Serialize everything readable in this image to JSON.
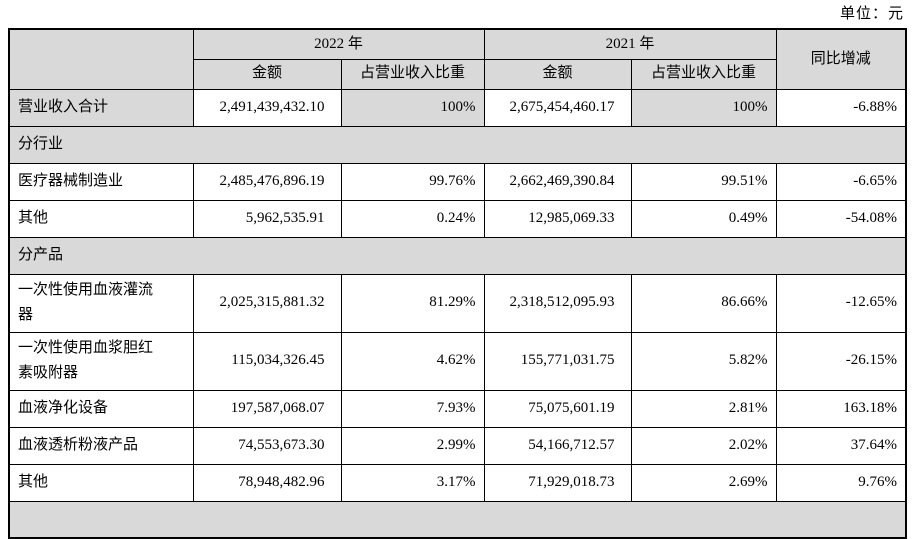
{
  "meta": {
    "unit_label": "单位：元"
  },
  "table": {
    "header": {
      "year_2022": "2022 年",
      "year_2021": "2021 年",
      "amount": "金额",
      "ratio": "占营业收入比重",
      "yoy": "同比增减"
    },
    "rows": [
      {
        "type": "total",
        "label": "营业收入合计",
        "amount_2022": "2,491,439,432.10",
        "percent_2022": "100%",
        "amount_2021": "2,675,454,460.17",
        "percent_2021": "100%",
        "yoy": "-6.88%"
      },
      {
        "type": "section",
        "label": "分行业"
      },
      {
        "type": "data",
        "label": "医疗器械制造业",
        "amount_2022": "2,485,476,896.19",
        "percent_2022": "99.76%",
        "amount_2021": "2,662,469,390.84",
        "percent_2021": "99.51%",
        "yoy": "-6.65%"
      },
      {
        "type": "data",
        "label": "其他",
        "amount_2022": "5,962,535.91",
        "percent_2022": "0.24%",
        "amount_2021": "12,985,069.33",
        "percent_2021": "0.49%",
        "yoy": "-54.08%"
      },
      {
        "type": "section",
        "label": "分产品"
      },
      {
        "type": "data",
        "label": "一次性使用血液灌流器",
        "amount_2022": "2,025,315,881.32",
        "percent_2022": "81.29%",
        "amount_2021": "2,318,512,095.93",
        "percent_2021": "86.66%",
        "yoy": "-12.65%"
      },
      {
        "type": "data",
        "label": "一次性使用血浆胆红素吸附器",
        "amount_2022": "115,034,326.45",
        "percent_2022": "4.62%",
        "amount_2021": "155,771,031.75",
        "percent_2021": "5.82%",
        "yoy": "-26.15%"
      },
      {
        "type": "data",
        "label": "血液净化设备",
        "amount_2022": "197,587,068.07",
        "percent_2022": "7.93%",
        "amount_2021": "75,075,601.19",
        "percent_2021": "2.81%",
        "yoy": "163.18%"
      },
      {
        "type": "data",
        "label": "血液透析粉液产品",
        "amount_2022": "74,553,673.30",
        "percent_2022": "2.99%",
        "amount_2021": "54,166,712.57",
        "percent_2021": "2.02%",
        "yoy": "37.64%"
      },
      {
        "type": "data",
        "label": "其他",
        "amount_2022": "78,948,482.96",
        "percent_2022": "3.17%",
        "amount_2021": "71,929,018.73",
        "percent_2021": "2.69%",
        "yoy": "9.76%"
      },
      {
        "type": "section",
        "label": ""
      }
    ]
  }
}
